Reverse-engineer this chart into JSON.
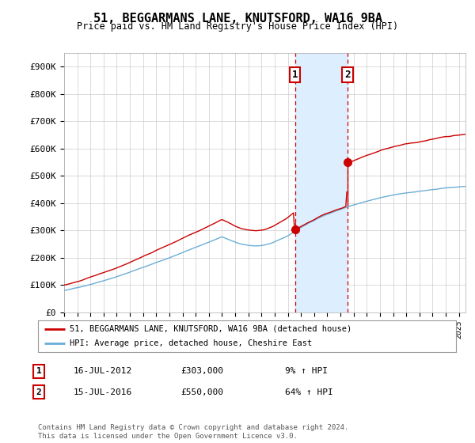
{
  "title": "51, BEGGARMANS LANE, KNUTSFORD, WA16 9BA",
  "subtitle": "Price paid vs. HM Land Registry's House Price Index (HPI)",
  "ylabel_ticks": [
    "£0",
    "£100K",
    "£200K",
    "£300K",
    "£400K",
    "£500K",
    "£600K",
    "£700K",
    "£800K",
    "£900K"
  ],
  "ylim": [
    0,
    950000
  ],
  "xlim_start": 1995.0,
  "xlim_end": 2025.5,
  "transaction1_date": 2012.54,
  "transaction1_price": 303000,
  "transaction2_date": 2016.54,
  "transaction2_price": 550000,
  "legend1": "51, BEGGARMANS LANE, KNUTSFORD, WA16 9BA (detached house)",
  "legend2": "HPI: Average price, detached house, Cheshire East",
  "label1_date": "16-JUL-2012",
  "label1_price": "£303,000",
  "label1_hpi": "9% ↑ HPI",
  "label2_date": "15-JUL-2016",
  "label2_price": "£550,000",
  "label2_hpi": "64% ↑ HPI",
  "footer": "Contains HM Land Registry data © Crown copyright and database right 2024.\nThis data is licensed under the Open Government Licence v3.0.",
  "hpi_color": "#6baed6",
  "price_color": "#cc0000",
  "shade_color": "#ddeeff",
  "grid_color": "#cccccc",
  "background_color": "#ffffff"
}
